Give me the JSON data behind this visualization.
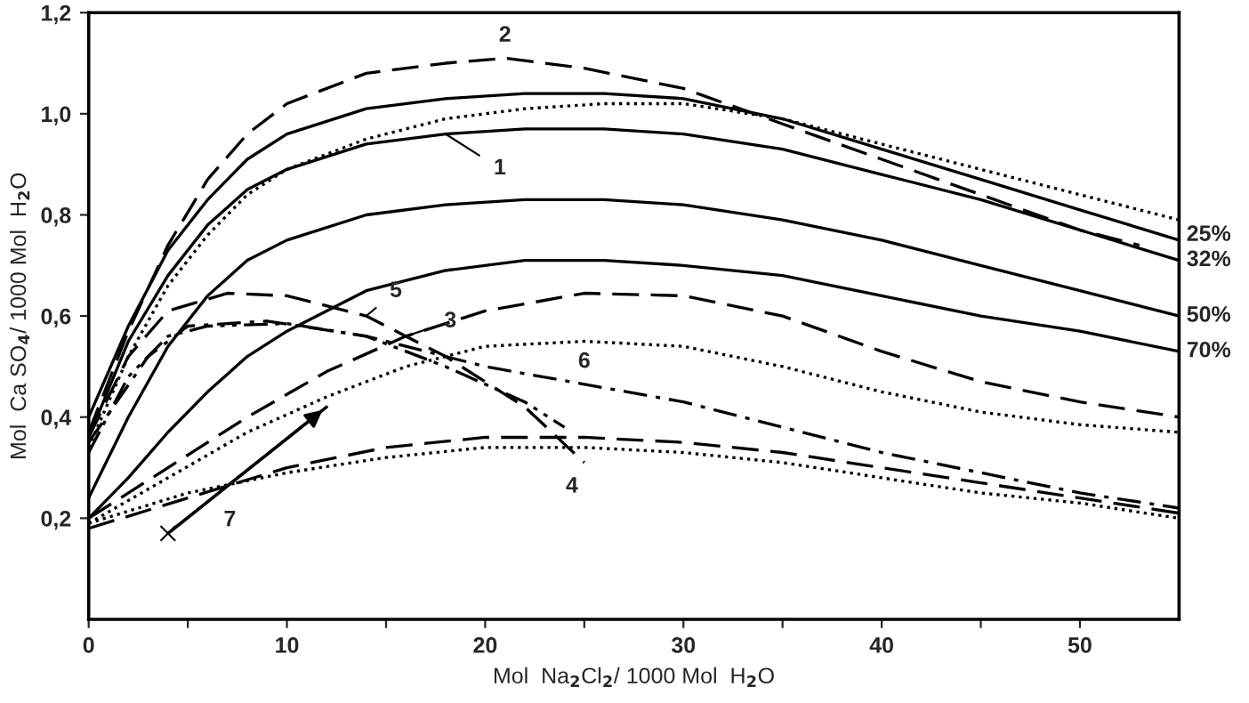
{
  "chart_data": {
    "type": "line",
    "xlabel": "Mol  Na$_{2}$Cl$_{2}$/ 1000 Mol  H$_{2}$O",
    "ylabel": "Mol  Ca SO$_{4}$/ 1000 Mol  H$_{2}$O",
    "xlim": [
      0,
      55
    ],
    "ylim": [
      0,
      1.2
    ],
    "xticks": [
      0,
      {
        "value": 5,
        "label": null
      },
      10,
      {
        "value": 15,
        "label": null
      },
      20,
      {
        "value": 25,
        "label": null
      },
      30,
      {
        "value": 35,
        "label": null
      },
      40,
      {
        "value": 45,
        "label": null
      },
      50
    ],
    "yticks": [
      {
        "value": 0.2,
        "label": "0,2"
      },
      {
        "value": 0.4,
        "label": "0,4"
      },
      {
        "value": 0.6,
        "label": "0,6"
      },
      {
        "value": 0.8,
        "label": "0,8"
      },
      {
        "value": 1.0,
        "label": "1,0"
      },
      {
        "value": 1.2,
        "label": "1,2"
      }
    ],
    "grid": false,
    "legend": false,
    "series": [
      {
        "color": "#000000",
        "line_style": "solid",
        "x": [
          0,
          2,
          4,
          6,
          8,
          10,
          14,
          18,
          22,
          26,
          30,
          35,
          40,
          45,
          50,
          55
        ],
        "values": [
          0.4,
          0.58,
          0.73,
          0.83,
          0.91,
          0.96,
          1.01,
          1.03,
          1.04,
          1.04,
          1.03,
          0.99,
          0.93,
          0.87,
          0.81,
          0.75
        ]
      },
      {
        "color": "#000000",
        "line_style": "solid",
        "x": [
          0,
          2,
          4,
          6,
          8,
          10,
          14,
          18,
          22,
          26,
          30,
          35,
          40,
          45,
          50,
          55
        ],
        "values": [
          0.36,
          0.55,
          0.68,
          0.78,
          0.85,
          0.89,
          0.94,
          0.96,
          0.97,
          0.97,
          0.96,
          0.93,
          0.88,
          0.83,
          0.77,
          0.71
        ]
      },
      {
        "color": "#000000",
        "line_style": "solid",
        "x": [
          0,
          2,
          4,
          6,
          8,
          10,
          14,
          18,
          22,
          26,
          30,
          35,
          40,
          45,
          50,
          55
        ],
        "values": [
          0.24,
          0.4,
          0.54,
          0.64,
          0.71,
          0.75,
          0.8,
          0.82,
          0.83,
          0.83,
          0.82,
          0.79,
          0.75,
          0.7,
          0.65,
          0.6
        ]
      },
      {
        "color": "#000000",
        "line_style": "solid",
        "x": [
          0,
          2,
          4,
          6,
          8,
          10,
          14,
          18,
          22,
          26,
          30,
          35,
          40,
          45,
          50,
          55
        ],
        "values": [
          0.2,
          0.28,
          0.37,
          0.45,
          0.52,
          0.57,
          0.65,
          0.69,
          0.71,
          0.71,
          0.7,
          0.68,
          0.64,
          0.6,
          0.57,
          0.53
        ]
      },
      {
        "color": "#000000",
        "line_style": "dotted",
        "x": [
          0,
          2,
          4,
          6,
          8,
          10,
          14,
          18,
          22,
          26,
          30,
          35,
          40,
          45,
          50,
          55
        ],
        "values": [
          0.34,
          0.52,
          0.66,
          0.76,
          0.84,
          0.89,
          0.95,
          0.99,
          1.01,
          1.02,
          1.02,
          0.99,
          0.94,
          0.89,
          0.84,
          0.79
        ]
      },
      {
        "color": "#000000",
        "line_style": "dashed",
        "x": [
          0,
          2,
          4,
          6,
          8,
          10,
          14,
          18,
          21,
          25,
          30,
          35,
          40,
          45,
          50,
          53
        ],
        "values": [
          0.37,
          0.57,
          0.74,
          0.87,
          0.96,
          1.02,
          1.08,
          1.1,
          1.11,
          1.09,
          1.05,
          0.98,
          0.91,
          0.84,
          0.77,
          0.74
        ]
      },
      {
        "color": "#000000",
        "line_style": "dashed",
        "x": [
          0,
          4,
          8,
          12,
          16,
          20,
          25,
          30,
          35,
          40,
          45,
          50,
          55
        ],
        "values": [
          0.2,
          0.3,
          0.4,
          0.49,
          0.56,
          0.61,
          0.645,
          0.64,
          0.6,
          0.53,
          0.47,
          0.43,
          0.4
        ]
      },
      {
        "color": "#000000",
        "line_style": "dotted",
        "x": [
          0,
          4,
          8,
          12,
          16,
          20,
          25,
          30,
          35,
          40,
          45,
          50,
          55
        ],
        "values": [
          0.19,
          0.28,
          0.37,
          0.44,
          0.5,
          0.54,
          0.55,
          0.54,
          0.5,
          0.45,
          0.41,
          0.385,
          0.37
        ]
      },
      {
        "color": "#000000",
        "line_style": "dashed",
        "x": [
          0,
          5,
          10,
          15,
          20,
          25,
          30,
          35,
          40,
          45,
          50,
          55
        ],
        "values": [
          0.18,
          0.24,
          0.3,
          0.34,
          0.36,
          0.36,
          0.35,
          0.33,
          0.3,
          0.27,
          0.24,
          0.21
        ]
      },
      {
        "color": "#000000",
        "line_style": "dotted",
        "x": [
          0,
          5,
          10,
          15,
          20,
          25,
          30,
          35,
          40,
          45,
          50,
          55
        ],
        "values": [
          0.19,
          0.25,
          0.29,
          0.32,
          0.34,
          0.34,
          0.33,
          0.31,
          0.28,
          0.25,
          0.23,
          0.2
        ]
      },
      {
        "color": "#000000",
        "line_style": "dashed",
        "x": [
          0,
          2,
          4,
          7,
          10,
          14,
          18,
          22,
          25
        ],
        "values": [
          0.36,
          0.52,
          0.61,
          0.645,
          0.64,
          0.6,
          0.52,
          0.42,
          0.31
        ]
      },
      {
        "color": "#000000",
        "line_style": "dashdotdot",
        "x": [
          0,
          2,
          4,
          6,
          10,
          14,
          18,
          22,
          24
        ],
        "values": [
          0.33,
          0.48,
          0.56,
          0.58,
          0.585,
          0.56,
          0.5,
          0.43,
          0.38
        ]
      },
      {
        "color": "#000000",
        "line_style": "dashdot",
        "x": [
          0,
          3,
          5,
          9,
          14,
          20,
          30,
          40,
          50,
          55
        ],
        "values": [
          0.35,
          0.52,
          0.58,
          0.59,
          0.56,
          0.5,
          0.43,
          0.33,
          0.25,
          0.22
        ]
      },
      {
        "color": "#000000",
        "line_style": "solid",
        "marker": "cross",
        "x": [
          4,
          12
        ],
        "values": [
          0.17,
          0.42
        ]
      }
    ],
    "annotations": [
      {
        "text": "1",
        "x": 18,
        "y": 0.96
      },
      {
        "text": "2",
        "x": 21,
        "y": 1.11
      },
      {
        "text": "3",
        "x": 16,
        "y": 0.56
      },
      {
        "text": "4",
        "x": 25,
        "y": 0.36
      },
      {
        "text": "5",
        "x": 14,
        "y": 0.6
      },
      {
        "text": "6",
        "x": 25,
        "y": 0.465
      },
      {
        "text": "7",
        "x": 6,
        "y": 0.23
      },
      {
        "text": "25%",
        "x": 55,
        "y": 0.76
      },
      {
        "text": "32%",
        "x": 55,
        "y": 0.71
      },
      {
        "text": "50%",
        "x": 55,
        "y": 0.6
      },
      {
        "text": "70%",
        "x": 55,
        "y": 0.53
      }
    ]
  }
}
